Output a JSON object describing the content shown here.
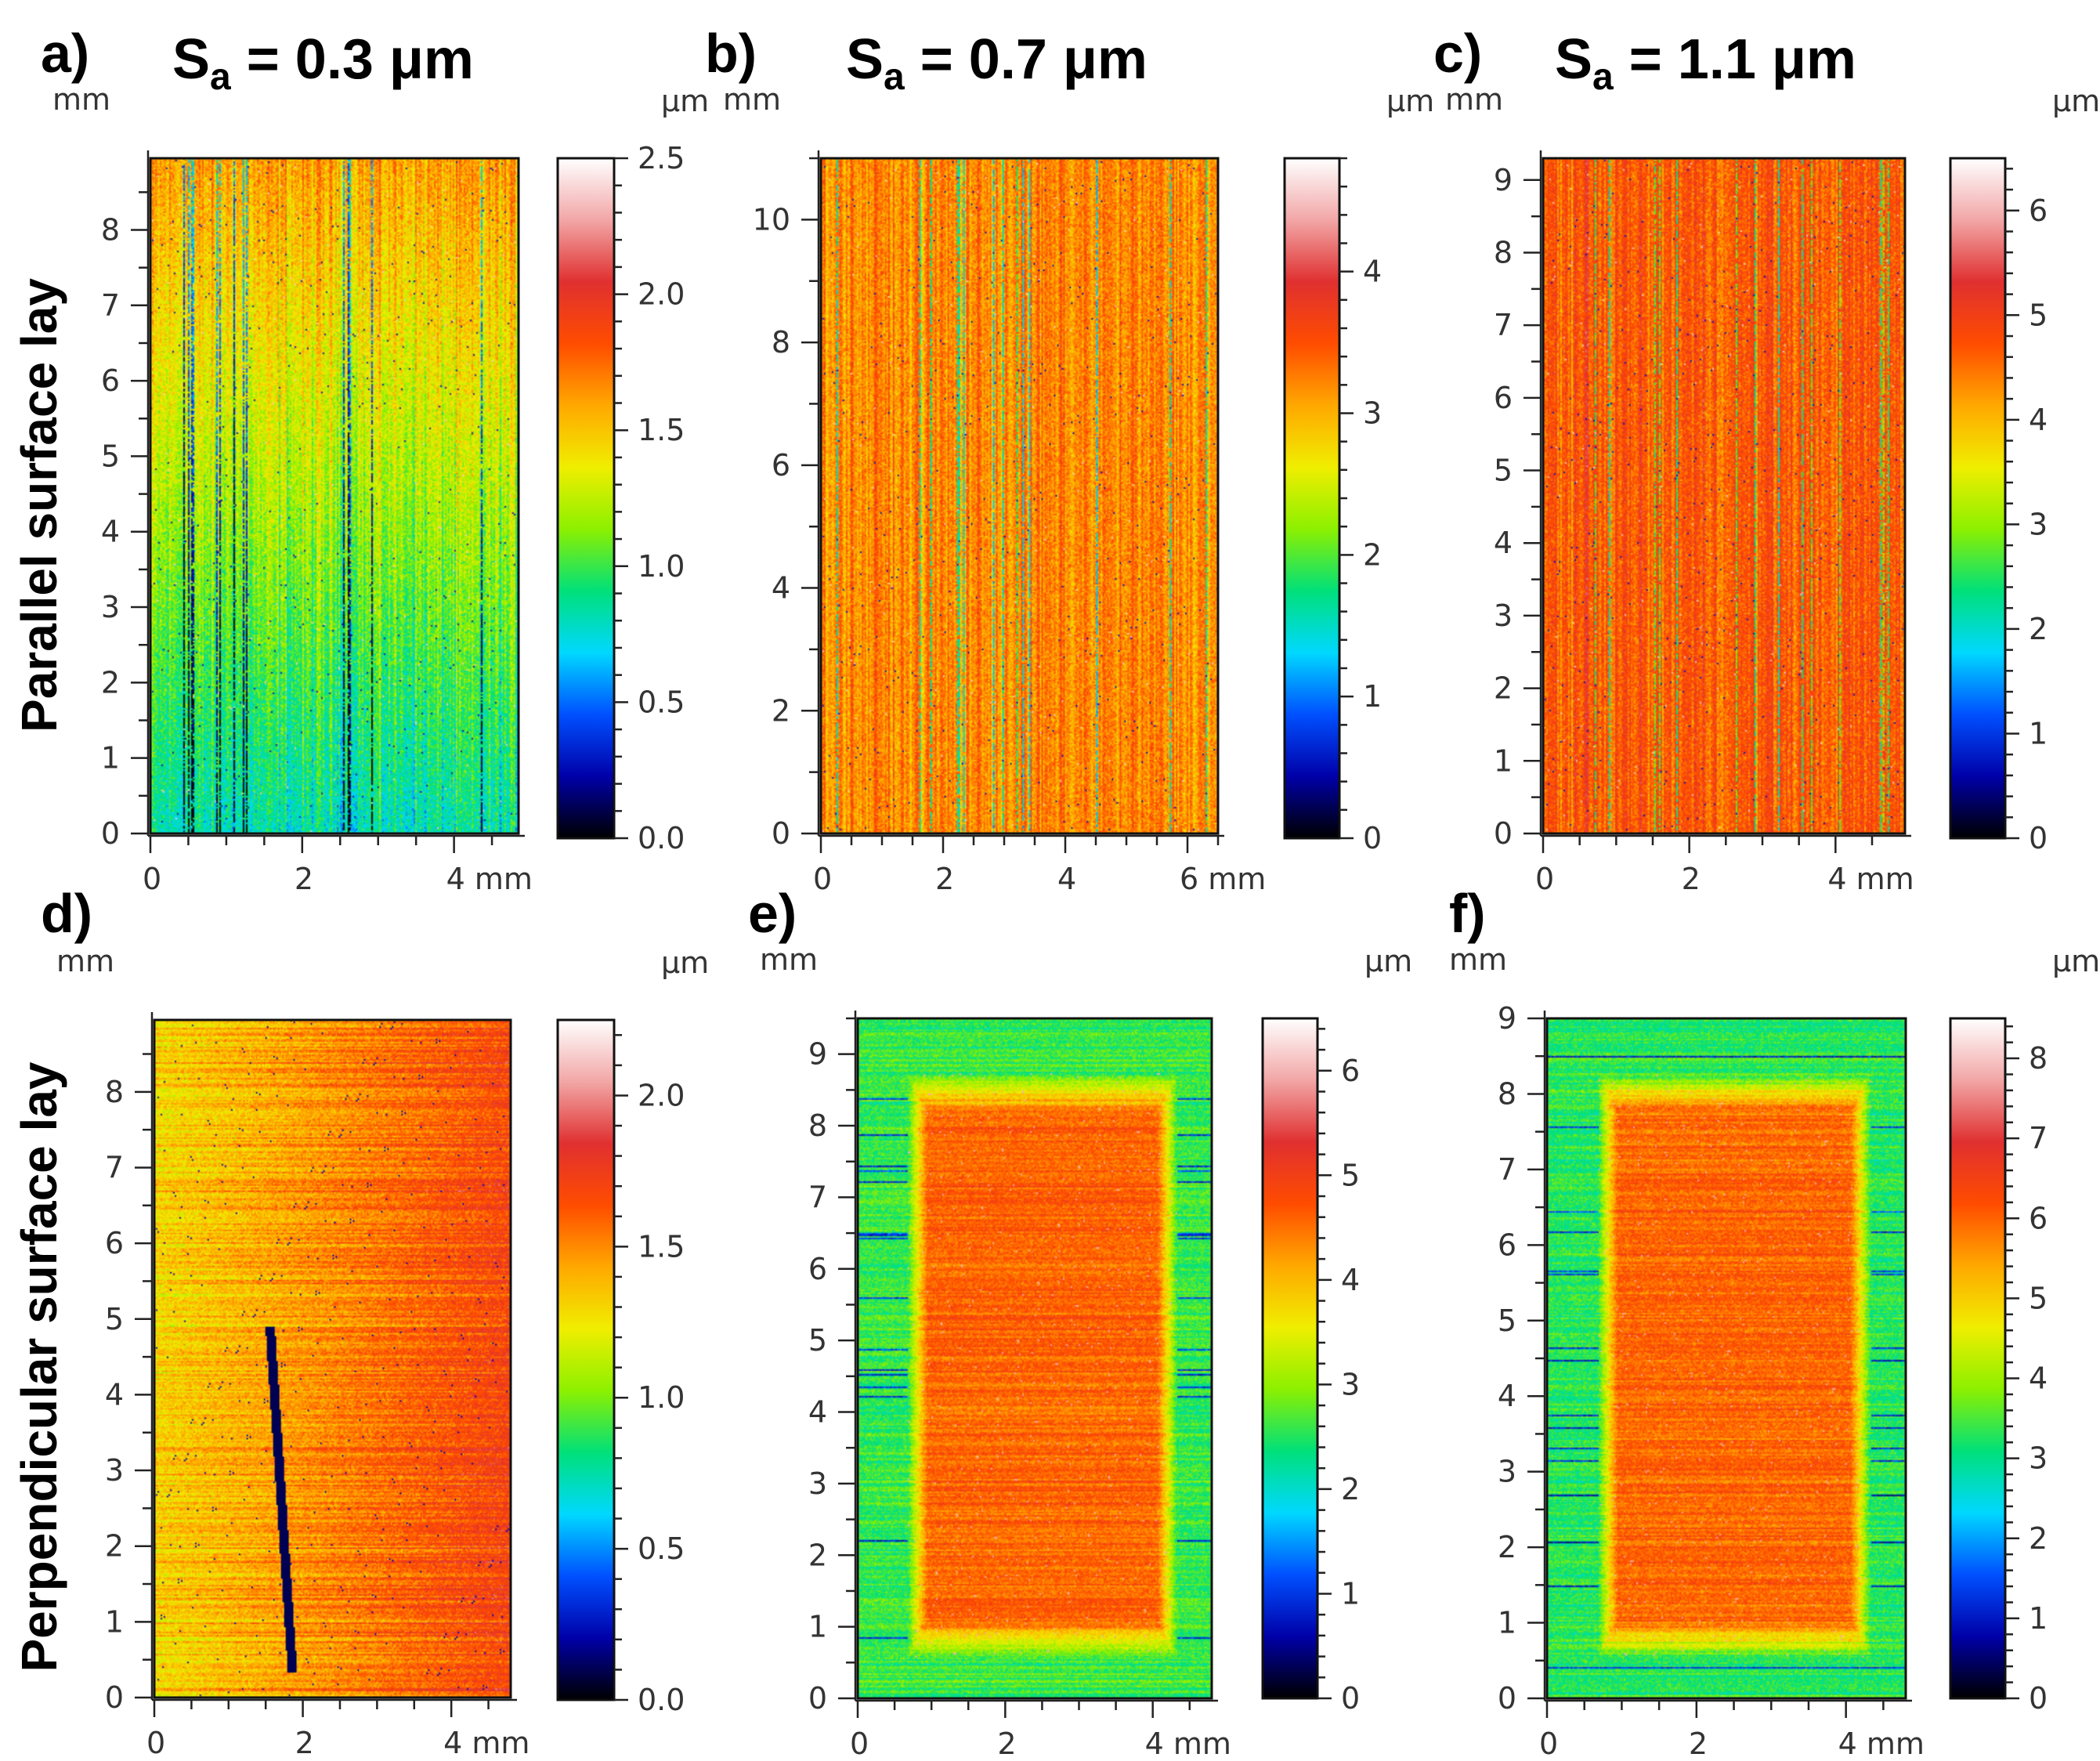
{
  "figure": {
    "row_labels": [
      "Parallel surface lay",
      "Perpendicular surface lay"
    ],
    "colorbar_stops": [
      "#000000",
      "#0000a8",
      "#0050ff",
      "#00d8ff",
      "#00e07a",
      "#8cf000",
      "#f0ee00",
      "#ffa800",
      "#ff4c00",
      "#e03030",
      "#f2a6a6",
      "#ffffff"
    ]
  },
  "chart_data": [
    {
      "type": "heatmap",
      "panel": "a)",
      "title_main": "S",
      "title_sub": "a",
      "title_value": " = 0.3 μm",
      "x_unit": "mm",
      "y_unit": "mm",
      "z_unit": "μm",
      "xlim": [
        0,
        4.85
      ],
      "ylim": [
        0,
        8.95
      ],
      "xticks": [
        0,
        2,
        4
      ],
      "xtick_labels": [
        "0",
        "2",
        "4 mm"
      ],
      "yticks": [
        0,
        1,
        2,
        3,
        4,
        5,
        6,
        7,
        8
      ],
      "ytick_labels": [
        "0",
        "1",
        "2",
        "3",
        "4",
        "5",
        "6",
        "7",
        "8"
      ],
      "zlim": [
        0,
        2.5
      ],
      "zticks": [
        0,
        0.5,
        1.0,
        1.5,
        2.0,
        2.5
      ],
      "ztick_labels": [
        "0.0",
        "0.5",
        "1.0",
        "1.5",
        "2.0",
        "2.5"
      ],
      "pattern": "parallel",
      "base_level": 1.35,
      "gradient_bottom": 0.8,
      "gradient_top": 1.6,
      "noise": 0.35
    },
    {
      "type": "heatmap",
      "panel": "b)",
      "title_main": "S",
      "title_sub": "a",
      "title_value": " = 0.7 μm",
      "x_unit": "mm",
      "y_unit": "mm",
      "z_unit": "μm",
      "xlim": [
        0,
        6.5
      ],
      "ylim": [
        0,
        11.0
      ],
      "xticks": [
        0,
        2,
        4,
        6
      ],
      "xtick_labels": [
        "0",
        "2",
        "4",
        "6 mm"
      ],
      "yticks": [
        0,
        2,
        4,
        6,
        8,
        10
      ],
      "ytick_labels": [
        "0",
        "2",
        "4",
        "6",
        "8",
        "10"
      ],
      "zlim": [
        0,
        4.8
      ],
      "zticks": [
        0,
        1,
        2,
        3,
        4
      ],
      "ztick_labels": [
        "0",
        "1",
        "2",
        "3",
        "4"
      ],
      "pattern": "parallel",
      "base_level": 3.2,
      "gradient_bottom": 3.2,
      "gradient_top": 3.2,
      "noise": 0.6
    },
    {
      "type": "heatmap",
      "panel": "c)",
      "title_main": "S",
      "title_sub": "a",
      "title_value": " = 1.1 μm",
      "x_unit": "mm",
      "y_unit": "mm",
      "z_unit": "μm",
      "xlim": [
        0,
        4.95
      ],
      "ylim": [
        0,
        9.3
      ],
      "xticks": [
        0,
        2,
        4
      ],
      "xtick_labels": [
        "0",
        "2",
        "4 mm"
      ],
      "yticks": [
        0,
        1,
        2,
        3,
        4,
        5,
        6,
        7,
        8,
        9
      ],
      "ytick_labels": [
        "0",
        "1",
        "2",
        "3",
        "4",
        "5",
        "6",
        "7",
        "8",
        "9"
      ],
      "zlim": [
        0,
        6.5
      ],
      "zticks": [
        0,
        1,
        2,
        3,
        4,
        5,
        6
      ],
      "ztick_labels": [
        "0",
        "1",
        "2",
        "3",
        "4",
        "5",
        "6"
      ],
      "pattern": "parallel",
      "base_level": 4.7,
      "gradient_bottom": 4.7,
      "gradient_top": 4.7,
      "noise": 0.8
    },
    {
      "type": "heatmap",
      "panel": "d)",
      "x_unit": "mm",
      "y_unit": "mm",
      "z_unit": "μm",
      "xlim": [
        0,
        4.8
      ],
      "ylim": [
        0,
        8.95
      ],
      "xticks": [
        0,
        2,
        4
      ],
      "xtick_labels": [
        "0",
        "2",
        "4 mm"
      ],
      "yticks": [
        0,
        1,
        2,
        3,
        4,
        5,
        6,
        7,
        8
      ],
      "ytick_labels": [
        "0",
        "1",
        "2",
        "3",
        "4",
        "5",
        "6",
        "7",
        "8"
      ],
      "zlim": [
        0,
        2.25
      ],
      "zticks": [
        0,
        0.5,
        1.0,
        1.5,
        2.0
      ],
      "ztick_labels": [
        "0.0",
        "0.5",
        "1.0",
        "1.5",
        "2.0"
      ],
      "pattern": "perpendicular_scratch",
      "base_level": 1.3,
      "noise": 0.3
    },
    {
      "type": "heatmap",
      "panel": "e)",
      "x_unit": "mm",
      "y_unit": "mm",
      "z_unit": "μm",
      "xlim": [
        0,
        4.8
      ],
      "ylim": [
        0,
        9.5
      ],
      "xticks": [
        0,
        2,
        4
      ],
      "xtick_labels": [
        "0",
        "2",
        "4 mm"
      ],
      "yticks": [
        0,
        1,
        2,
        3,
        4,
        5,
        6,
        7,
        8,
        9
      ],
      "ytick_labels": [
        "0",
        "1",
        "2",
        "3",
        "4",
        "5",
        "6",
        "7",
        "8",
        "9"
      ],
      "zlim": [
        0,
        6.5
      ],
      "zticks": [
        0,
        1,
        2,
        3,
        4,
        5,
        6
      ],
      "ztick_labels": [
        "0",
        "1",
        "2",
        "3",
        "4",
        "5",
        "6"
      ],
      "pattern": "perpendicular_patch",
      "base_level": 2.6,
      "patch_level": 4.6,
      "noise": 0.6
    },
    {
      "type": "heatmap",
      "panel": "f)",
      "x_unit": "mm",
      "y_unit": "mm",
      "z_unit": "μm",
      "xlim": [
        0,
        4.8
      ],
      "ylim": [
        0,
        9.0
      ],
      "xticks": [
        0,
        2,
        4
      ],
      "xtick_labels": [
        "0",
        "2",
        "4 mm"
      ],
      "yticks": [
        0,
        1,
        2,
        3,
        4,
        5,
        6,
        7,
        8,
        9
      ],
      "ytick_labels": [
        "0",
        "1",
        "2",
        "3",
        "4",
        "5",
        "6",
        "7",
        "8",
        "9"
      ],
      "zlim": [
        0,
        8.5
      ],
      "zticks": [
        0,
        1,
        2,
        3,
        4,
        5,
        6,
        7,
        8
      ],
      "ztick_labels": [
        "0",
        "1",
        "2",
        "3",
        "4",
        "5",
        "6",
        "7",
        "8"
      ],
      "pattern": "perpendicular_patch",
      "base_level": 3.3,
      "patch_level": 6.0,
      "noise": 0.8
    }
  ]
}
